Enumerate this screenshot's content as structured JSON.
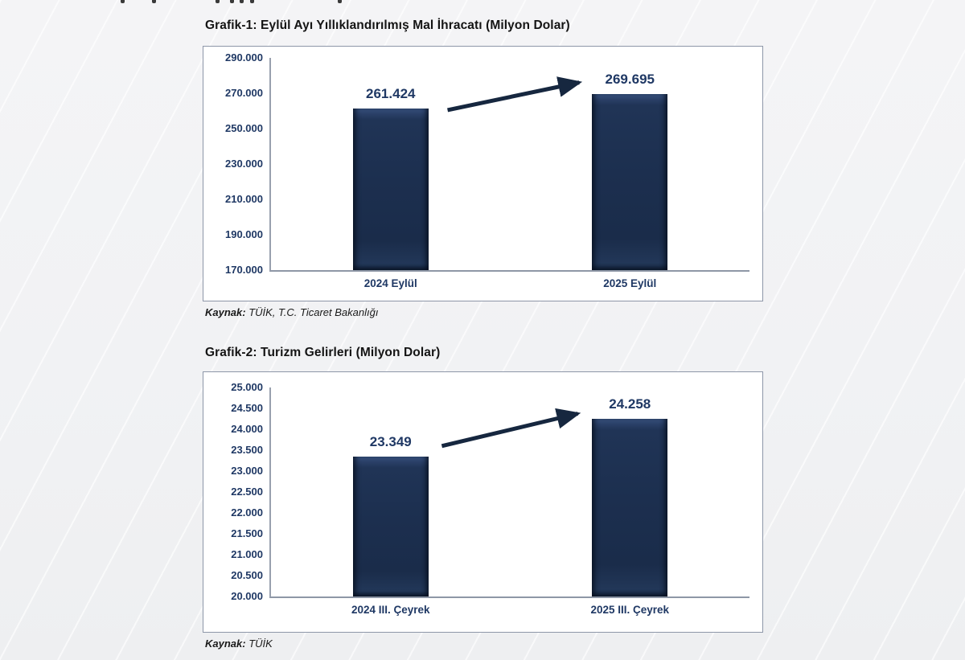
{
  "page": {
    "background_color": "#f1f2f4"
  },
  "colors": {
    "bar_fill": "#1c2f4f",
    "bar_bevel_light": "#2c4269",
    "value_label": "#1f3864",
    "tick_label": "#1f3864",
    "axis_line": "#98a0ae",
    "frame_border": "#8d96a8",
    "arrow": "#16273f",
    "title_text": "#141414"
  },
  "chart_data": [
    {
      "type": "bar",
      "title": "Grafik-1: Eylül Ayı Yıllıklandırılmış Mal İhracatı (Milyon Dolar)",
      "categories": [
        "2024 Eylül",
        "2025 Eylül"
      ],
      "values": [
        261424,
        269695
      ],
      "value_labels": [
        "261.424",
        "269.695"
      ],
      "xlabel": "",
      "ylabel": "",
      "ylim": [
        170000,
        290000
      ],
      "ytick_step": 20000,
      "ytick_labels": [
        "170.000",
        "190.000",
        "210.000",
        "230.000",
        "250.000",
        "270.000",
        "290.000"
      ],
      "grid": false,
      "legend": "none",
      "annotation": "upward arrow from 2024 bar to 2025 bar",
      "source_label": "Kaynak:",
      "source_rest": " TÜİK, T.C. Ticaret Bakanlığı"
    },
    {
      "type": "bar",
      "title": "Grafik-2: Turizm Gelirleri (Milyon Dolar)",
      "categories": [
        "2024 III. Çeyrek",
        "2025 III. Çeyrek"
      ],
      "values": [
        23349,
        24258
      ],
      "value_labels": [
        "23.349",
        "24.258"
      ],
      "xlabel": "",
      "ylabel": "",
      "ylim": [
        20000,
        25000
      ],
      "ytick_step": 500,
      "ytick_labels": [
        "20.000",
        "20.500",
        "21.000",
        "21.500",
        "22.000",
        "22.500",
        "23.000",
        "23.500",
        "24.000",
        "24.500",
        "25.000"
      ],
      "grid": false,
      "legend": "none",
      "annotation": "upward arrow from 2024 bar to 2025 bar",
      "source_label": "Kaynak:",
      "source_rest": " TÜİK"
    }
  ]
}
